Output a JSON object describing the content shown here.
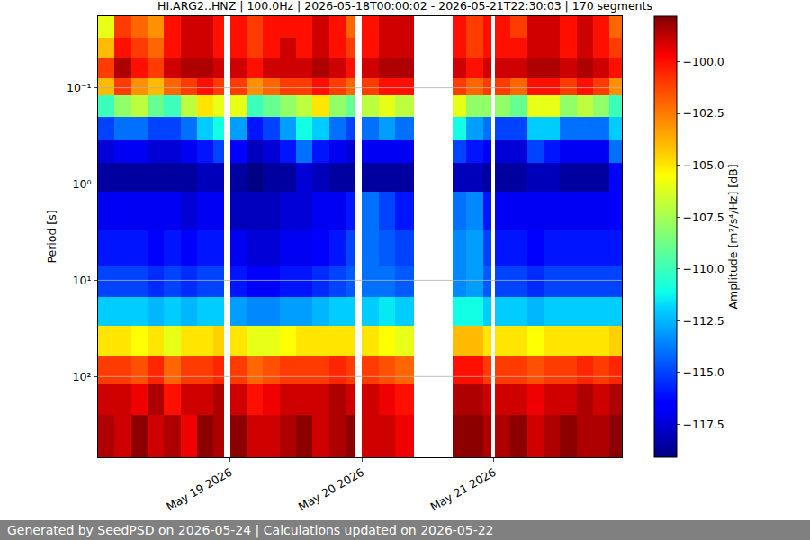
{
  "chart_data": {
    "type": "heatmap",
    "title": "HI.ARG2..HNZ | 100.0Hz | 2026-05-18T00:00:02 - 2026-05-21T22:30:03 | 170 segments",
    "ylabel": "Period [s]",
    "colorbar_label": "Amplitude [m²/s⁴/Hz] [dB]",
    "footer": "Generated by SeedPSD on 2026-05-24 | Calculations updated on 2026-05-22",
    "log": "y",
    "grid": true,
    "xlim": [
      "2026-05-18 00:00:00",
      "2026-05-21 23:15:00"
    ],
    "xticks": [
      {
        "value": "2026-05-19 00:00:00",
        "label": "May 19 2026"
      },
      {
        "value": "2026-05-20 00:00:00",
        "label": "May 20 2026"
      },
      {
        "value": "2026-05-21 00:00:00",
        "label": "May 21 2026"
      }
    ],
    "ylim": [
      690,
      0.018
    ],
    "yticks": [
      {
        "value": 0.1,
        "label": "10⁻¹"
      },
      {
        "value": 1,
        "label": "10⁰"
      },
      {
        "value": 10,
        "label": "10¹"
      },
      {
        "value": 100,
        "label": "10²"
      }
    ],
    "zlim": [
      -119.1,
      -97.8
    ],
    "zticks": [
      {
        "value": -100,
        "label": "−100.0"
      },
      {
        "value": -102.5,
        "label": "−102.5"
      },
      {
        "value": -105,
        "label": "−105.0"
      },
      {
        "value": -107.5,
        "label": "−107.5"
      },
      {
        "value": -110,
        "label": "−110.0"
      },
      {
        "value": -112.5,
        "label": "−112.5"
      },
      {
        "value": -115,
        "label": "−115.0"
      },
      {
        "value": -117.5,
        "label": "−117.5"
      }
    ],
    "x_edges": [
      "2026-05-18 00:00",
      "2026-05-18 03:00",
      "2026-05-18 06:00",
      "2026-05-18 09:00",
      "2026-05-18 12:00",
      "2026-05-18 15:00",
      "2026-05-18 18:00",
      "2026-05-18 21:00",
      "2026-05-18 22:50",
      "2026-05-19 00:00",
      "2026-05-19 03:00",
      "2026-05-19 06:00",
      "2026-05-19 09:00",
      "2026-05-19 12:00",
      "2026-05-19 15:00",
      "2026-05-19 18:00",
      "2026-05-19 21:00",
      "2026-05-19 22:50",
      "2026-05-20 00:00",
      "2026-05-20 03:00",
      "2026-05-20 06:00",
      "2026-05-20 09:30",
      "2026-05-20 16:24",
      "2026-05-20 19:00",
      "2026-05-20 22:00",
      "2026-05-20 23:30",
      "2026-05-21 00:15",
      "2026-05-21 03:00",
      "2026-05-21 06:00",
      "2026-05-21 09:00",
      "2026-05-21 12:00",
      "2026-05-21 15:00",
      "2026-05-21 18:00",
      "2026-05-21 21:00",
      "2026-05-21 23:15"
    ],
    "y_edges": [
      0.018,
      0.03,
      0.05,
      0.08,
      0.12,
      0.2,
      0.35,
      0.6,
      1.2,
      3,
      7,
      15,
      30,
      60,
      120,
      250,
      690
    ],
    "z": [
      [
        -106,
        -101,
        -102,
        -103,
        -100,
        -99,
        -99,
        -100,
        null,
        -100,
        -101,
        -100,
        -100,
        -100,
        -99,
        -100,
        -102,
        null,
        -100,
        -99,
        -99,
        null,
        -100,
        -101,
        -100,
        null,
        -100,
        -101,
        -99,
        -99,
        -100,
        -99,
        -100,
        -102
      ],
      [
        -104,
        -100,
        -101,
        -102,
        -100,
        -99,
        -99,
        -100,
        null,
        -100,
        -101,
        -100,
        -99,
        -100,
        -99,
        -100,
        -101,
        null,
        -100,
        -99,
        -99,
        null,
        -100,
        -101,
        -100,
        null,
        -100,
        -100,
        -99,
        -99,
        -100,
        -99,
        -100,
        -101
      ],
      [
        -101,
        -98.5,
        -100,
        -101,
        -99,
        -98.5,
        -98.5,
        -99,
        null,
        -99,
        -100,
        -99,
        -99,
        -99,
        -98.5,
        -99,
        -100,
        null,
        -99,
        -98.5,
        -98.5,
        null,
        -99,
        -100,
        -99,
        null,
        -99,
        -99,
        -98.5,
        -98.5,
        -99,
        -98.5,
        -99,
        -100
      ],
      [
        -104,
        -101,
        -103,
        -104,
        -102,
        -101,
        -100,
        -101,
        null,
        -101,
        -103,
        -102,
        -101,
        -101,
        -100,
        -101,
        -102,
        null,
        -101,
        -100,
        -100,
        null,
        -101,
        -102,
        -101,
        null,
        -101,
        -102,
        -100,
        -100,
        -101,
        -100,
        -101,
        -103
      ],
      [
        -110,
        -108,
        -107,
        -109,
        -110,
        -107,
        -105,
        -106,
        null,
        -106,
        -110,
        -109,
        -108,
        -107,
        -105,
        -108,
        -109,
        null,
        -107,
        -106,
        -107,
        null,
        -106,
        -108,
        -108,
        null,
        -108,
        -109,
        -106,
        -106,
        -108,
        -107,
        -108,
        -110
      ],
      [
        -115,
        -114,
        -114,
        -115,
        -115,
        -114,
        -112,
        -111,
        null,
        -113,
        -116,
        -115,
        -113,
        -111,
        -112,
        -114,
        -115,
        null,
        -114,
        -113,
        -114,
        null,
        -111,
        -113,
        -114,
        null,
        -115,
        -115,
        -112,
        -112,
        -114,
        -114,
        -114,
        -112
      ],
      [
        -117.5,
        -117,
        -117,
        -117.5,
        -117.5,
        -117,
        -116,
        -115,
        null,
        -116.5,
        -118,
        -117.5,
        -116,
        -114,
        -116,
        -117,
        -117.5,
        null,
        -117,
        -117,
        -117,
        null,
        -115,
        -116,
        -117,
        null,
        -117.5,
        -117.5,
        -115,
        -116,
        -117,
        -117,
        -117,
        -114
      ],
      [
        -118.5,
        -118.5,
        -118.5,
        -118.5,
        -118.5,
        -118.5,
        -118,
        -118,
        null,
        -118.5,
        -119,
        -118.5,
        -118.5,
        -117.5,
        -118,
        -118.5,
        -118.5,
        null,
        -118.5,
        -118.5,
        -118.5,
        null,
        -118,
        -118,
        -118.5,
        null,
        -118.5,
        -118.5,
        -118,
        -118,
        -118.5,
        -118.5,
        -118.5,
        -116.5
      ],
      [
        -117,
        -117,
        -117,
        -117,
        -117,
        -117.5,
        -117,
        -117,
        null,
        -118,
        -118,
        -118,
        -117.5,
        -117.5,
        -117,
        -117,
        -116,
        null,
        -114,
        -115,
        -116,
        null,
        -114,
        -113.5,
        -116,
        null,
        -117,
        -117,
        -117,
        -117,
        -117,
        -117,
        -117,
        -116.5
      ],
      [
        -116,
        -116,
        -116,
        -116.5,
        -116,
        -116.5,
        -116,
        -116,
        null,
        -117,
        -117.5,
        -117.5,
        -117,
        -117,
        -116.5,
        -116,
        -115,
        null,
        -114,
        -114.5,
        -115,
        null,
        -113.5,
        -113,
        -115,
        null,
        -116,
        -116,
        -116.5,
        -116,
        -116,
        -116,
        -116,
        -116
      ],
      [
        -115,
        -115,
        -115,
        -115.5,
        -115,
        -115.5,
        -115,
        -115,
        null,
        -116,
        -116.5,
        -116.5,
        -116,
        -116,
        -115.5,
        -115,
        -114.5,
        null,
        -114,
        -114,
        -114.5,
        null,
        -113.5,
        -113,
        -114.5,
        null,
        -115,
        -115,
        -115.5,
        -115,
        -115,
        -115,
        -115,
        -115
      ],
      [
        -112,
        -112,
        -112,
        -112.5,
        -112,
        -112.5,
        -112,
        -112,
        null,
        -113,
        -113.5,
        -113.5,
        -113,
        -113,
        -112.5,
        -112,
        -112,
        null,
        -112,
        -111.5,
        -112,
        null,
        -111,
        -111,
        -112,
        null,
        -112,
        -112,
        -112.5,
        -112,
        -112,
        -112,
        -112,
        -112
      ],
      [
        -105,
        -105,
        -105.5,
        -105,
        -106,
        -105,
        -105,
        -104.5,
        null,
        -105,
        -106,
        -106,
        -105.5,
        -105,
        -105,
        -105,
        -105,
        null,
        -105,
        -105.5,
        -106,
        null,
        -104,
        -104,
        -105,
        null,
        -105,
        -105,
        -105.5,
        -105,
        -105,
        -105,
        -105,
        -104.5
      ],
      [
        -101,
        -101,
        -101.5,
        -100.5,
        -102,
        -101,
        -101,
        -100.5,
        null,
        -101,
        -102,
        -101.5,
        -101,
        -101,
        -101,
        -100.5,
        -101,
        null,
        -101,
        -101.5,
        -102,
        null,
        -100,
        -100,
        -101,
        null,
        -101,
        -101,
        -101.5,
        -101,
        -101,
        -100.5,
        -101,
        -100.5
      ],
      [
        -99,
        -99,
        -99.5,
        -98.5,
        -100,
        -99,
        -99,
        -98.5,
        null,
        -99,
        -100,
        -99.5,
        -99,
        -99,
        -99,
        -98.5,
        -99,
        null,
        -99,
        -99.5,
        -100,
        null,
        -98.5,
        -98.5,
        -99,
        null,
        -99,
        -99,
        -99.5,
        -99,
        -99,
        -98.5,
        -99,
        -98.5
      ],
      [
        -98.5,
        -99,
        -98,
        -99,
        -98.5,
        -99.5,
        -98,
        -98.5,
        null,
        -98,
        -99,
        -99,
        -98.5,
        -98,
        -99,
        -98.5,
        -98,
        null,
        -99,
        -99,
        -99.5,
        null,
        -98,
        -98,
        -98.5,
        null,
        -98.5,
        -98,
        -99,
        -98.5,
        -98,
        -98.5,
        -98.5,
        -98
      ]
    ]
  }
}
